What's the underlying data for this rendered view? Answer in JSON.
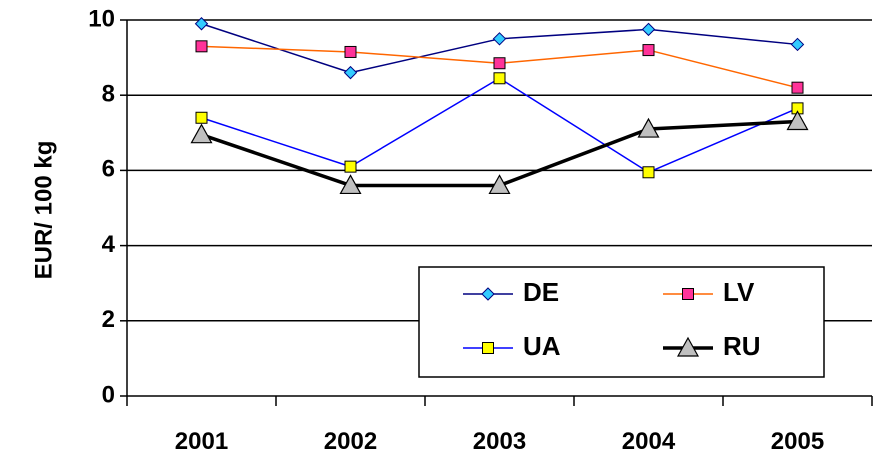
{
  "chart_data": {
    "type": "line",
    "title": "",
    "ylabel": "EUR/ 100 kg",
    "xlabel": "",
    "categories": [
      "2001",
      "2002",
      "2003",
      "2004",
      "2005"
    ],
    "ylim": [
      0,
      10
    ],
    "yticks": [
      0,
      2,
      4,
      6,
      8,
      10
    ],
    "ytick_labels": [
      "0",
      "2",
      "4",
      "6",
      "8",
      "10"
    ],
    "grid": "horizontal major lines",
    "legend_position": "bottom-right, inside plot area",
    "series": [
      {
        "name": "DE",
        "values": [
          9.9,
          8.6,
          9.5,
          9.75,
          9.35
        ],
        "color": "#000080",
        "marker": "diamond",
        "marker_color": "#33CCFF"
      },
      {
        "name": "LV",
        "values": [
          9.3,
          9.15,
          8.85,
          9.2,
          8.2
        ],
        "color": "#FF6600",
        "marker": "square",
        "marker_color": "#FF3399"
      },
      {
        "name": "UA",
        "values": [
          7.4,
          6.1,
          8.45,
          5.95,
          7.65
        ],
        "color": "#0000FF",
        "marker": "square",
        "marker_color": "#FFFF00"
      },
      {
        "name": "RU",
        "values": [
          6.95,
          5.6,
          5.6,
          7.1,
          7.3
        ],
        "color": "#000000",
        "marker": "triangle",
        "marker_color": "#C0C0C0"
      }
    ]
  }
}
